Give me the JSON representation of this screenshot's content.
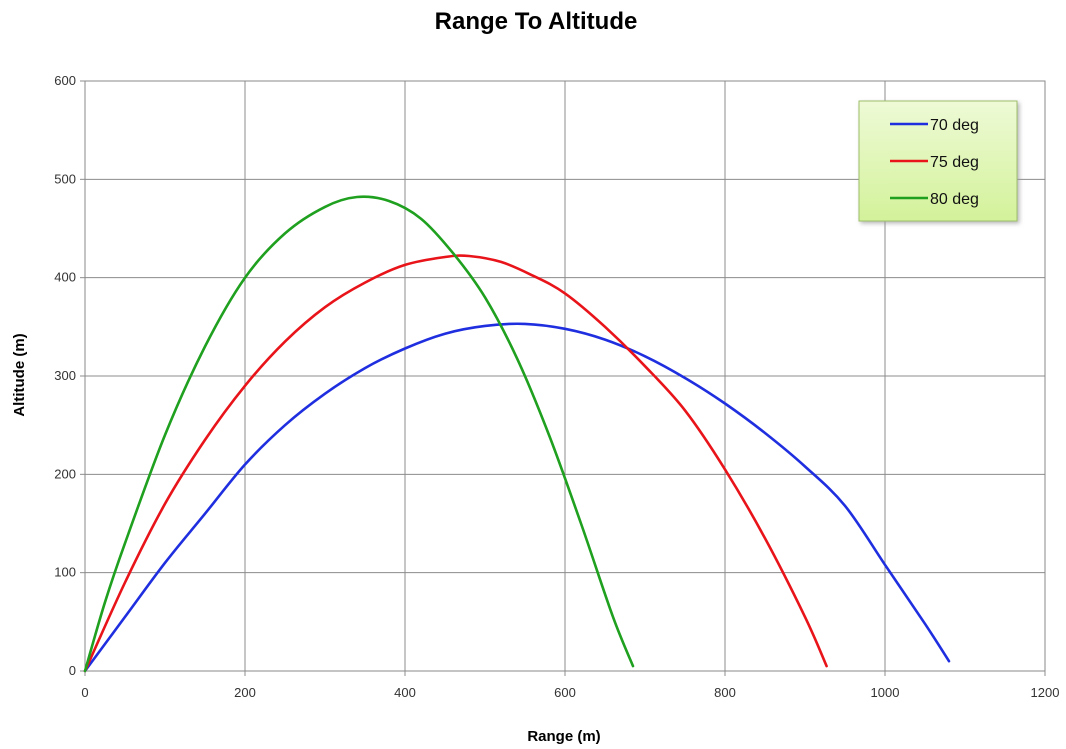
{
  "chart_data": {
    "type": "line",
    "title": "Range To Altitude",
    "xlabel": "Range (m)",
    "ylabel": "Altitude (m)",
    "xlim": [
      0,
      1200
    ],
    "ylim": [
      0,
      600
    ],
    "xticks": [
      "0",
      "200",
      "400",
      "600",
      "800",
      "1000",
      "1200"
    ],
    "yticks": [
      "0",
      "100",
      "200",
      "300",
      "400",
      "500",
      "600"
    ],
    "grid": true,
    "legend_position": "top-right",
    "series": [
      {
        "name": "70 deg",
        "color": "#1f2fe0",
        "points": [
          [
            0,
            0
          ],
          [
            50,
            55
          ],
          [
            100,
            110
          ],
          [
            150,
            160
          ],
          [
            200,
            210
          ],
          [
            250,
            250
          ],
          [
            300,
            282
          ],
          [
            350,
            308
          ],
          [
            400,
            328
          ],
          [
            450,
            343
          ],
          [
            500,
            351
          ],
          [
            550,
            353
          ],
          [
            600,
            348
          ],
          [
            650,
            337
          ],
          [
            700,
            320
          ],
          [
            750,
            298
          ],
          [
            800,
            272
          ],
          [
            850,
            242
          ],
          [
            900,
            208
          ],
          [
            950,
            168
          ],
          [
            1000,
            108
          ],
          [
            1050,
            48
          ],
          [
            1080,
            10
          ]
        ]
      },
      {
        "name": "75 deg",
        "color": "#e8141a",
        "points": [
          [
            0,
            0
          ],
          [
            50,
            90
          ],
          [
            100,
            170
          ],
          [
            150,
            235
          ],
          [
            200,
            290
          ],
          [
            250,
            335
          ],
          [
            300,
            370
          ],
          [
            350,
            395
          ],
          [
            400,
            413
          ],
          [
            450,
            421
          ],
          [
            480,
            422
          ],
          [
            520,
            416
          ],
          [
            560,
            402
          ],
          [
            600,
            384
          ],
          [
            650,
            350
          ],
          [
            700,
            310
          ],
          [
            750,
            265
          ],
          [
            800,
            205
          ],
          [
            850,
            135
          ],
          [
            900,
            55
          ],
          [
            927,
            5
          ]
        ]
      },
      {
        "name": "80 deg",
        "color": "#1fa01f",
        "points": [
          [
            0,
            0
          ],
          [
            25,
            70
          ],
          [
            50,
            130
          ],
          [
            100,
            240
          ],
          [
            150,
            330
          ],
          [
            200,
            400
          ],
          [
            250,
            445
          ],
          [
            300,
            472
          ],
          [
            340,
            482
          ],
          [
            380,
            478
          ],
          [
            420,
            460
          ],
          [
            460,
            425
          ],
          [
            500,
            380
          ],
          [
            540,
            318
          ],
          [
            580,
            240
          ],
          [
            620,
            150
          ],
          [
            660,
            55
          ],
          [
            685,
            5
          ]
        ]
      }
    ]
  }
}
